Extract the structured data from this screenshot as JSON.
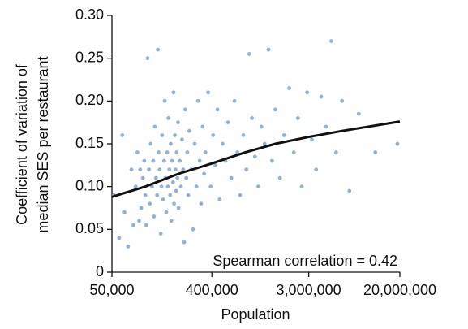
{
  "chart_data": {
    "type": "scatter",
    "xlabel": "Population",
    "ylabel": [
      "Coefficient of variation of",
      "median SES per restaurant"
    ],
    "annotation": "Spearman correlation = 0.42",
    "log_x": true,
    "xlim": [
      50000,
      20000000
    ],
    "xticks": [
      {
        "value": 50000,
        "label": "50,000"
      },
      {
        "value": 400000,
        "label": "400,000"
      },
      {
        "value": 3000000,
        "label": "3,000,000"
      },
      {
        "value": 20000000,
        "label": "20,000,000"
      }
    ],
    "ylim": [
      0,
      0.3
    ],
    "yticks": [
      0,
      0.05,
      {
        "value": 0.1,
        "label": "0.10"
      },
      0.15,
      {
        "value": 0.2,
        "label": "0.20"
      },
      0.25,
      {
        "value": 0.3,
        "label": "0.30"
      }
    ],
    "series": [
      {
        "color": "#7fa6cc",
        "x": [
          52000,
          58000,
          62000,
          65000,
          70000,
          75000,
          78000,
          82000,
          85000,
          88000,
          90000,
          92000,
          95000,
          98000,
          100000,
          102000,
          105000,
          108000,
          110000,
          112000,
          115000,
          118000,
          120000,
          122000,
          125000,
          128000,
          130000,
          132000,
          135000,
          138000,
          140000,
          142000,
          145000,
          148000,
          150000,
          152000,
          155000,
          158000,
          160000,
          162000,
          165000,
          168000,
          170000,
          172000,
          175000,
          178000,
          180000,
          182000,
          185000,
          188000,
          190000,
          192000,
          195000,
          198000,
          200000,
          205000,
          210000,
          215000,
          220000,
          225000,
          230000,
          235000,
          240000,
          245000,
          250000,
          260000,
          270000,
          280000,
          290000,
          300000,
          310000,
          320000,
          330000,
          340000,
          350000,
          370000,
          390000,
          410000,
          430000,
          450000,
          470000,
          500000,
          530000,
          560000,
          600000,
          640000,
          680000,
          720000,
          770000,
          820000,
          870000,
          920000,
          980000,
          1050000,
          1120000,
          1200000,
          1300000,
          1400000,
          1500000,
          1650000,
          1800000,
          2000000,
          2200000,
          2400000,
          2600000,
          2900000,
          3200000,
          3500000,
          3900000,
          4300000,
          4800000,
          5300000,
          6000000,
          7000000,
          8500000,
          12000000,
          19000000
        ],
        "values": [
          0.09,
          0.04,
          0.16,
          0.07,
          0.03,
          0.12,
          0.055,
          0.1,
          0.14,
          0.06,
          0.12,
          0.075,
          0.11,
          0.13,
          0.09,
          0.055,
          0.25,
          0.12,
          0.08,
          0.15,
          0.1,
          0.13,
          0.065,
          0.17,
          0.11,
          0.09,
          0.26,
          0.14,
          0.12,
          0.045,
          0.1,
          0.16,
          0.085,
          0.13,
          0.2,
          0.11,
          0.07,
          0.14,
          0.1,
          0.18,
          0.12,
          0.09,
          0.15,
          0.06,
          0.13,
          0.105,
          0.21,
          0.08,
          0.16,
          0.12,
          0.095,
          0.14,
          0.11,
          0.175,
          0.075,
          0.13,
          0.1,
          0.155,
          0.12,
          0.035,
          0.19,
          0.11,
          0.14,
          0.09,
          0.165,
          0.12,
          0.05,
          0.15,
          0.1,
          0.2,
          0.13,
          0.08,
          0.17,
          0.115,
          0.14,
          0.21,
          0.1,
          0.16,
          0.125,
          0.19,
          0.085,
          0.15,
          0.13,
          0.175,
          0.11,
          0.2,
          0.14,
          0.09,
          0.16,
          0.12,
          0.255,
          0.18,
          0.135,
          0.1,
          0.17,
          0.15,
          0.26,
          0.13,
          0.19,
          0.11,
          0.16,
          0.215,
          0.14,
          0.18,
          0.1,
          0.21,
          0.155,
          0.12,
          0.205,
          0.17,
          0.27,
          0.14,
          0.2,
          0.095,
          0.185,
          0.14,
          0.15
        ]
      }
    ],
    "trend_line": {
      "color": "#111111",
      "x": [
        50000,
        100000,
        200000,
        400000,
        800000,
        1500000,
        3000000,
        6000000,
        20000000
      ],
      "values": [
        0.088,
        0.1,
        0.115,
        0.127,
        0.14,
        0.15,
        0.158,
        0.165,
        0.176
      ]
    }
  }
}
